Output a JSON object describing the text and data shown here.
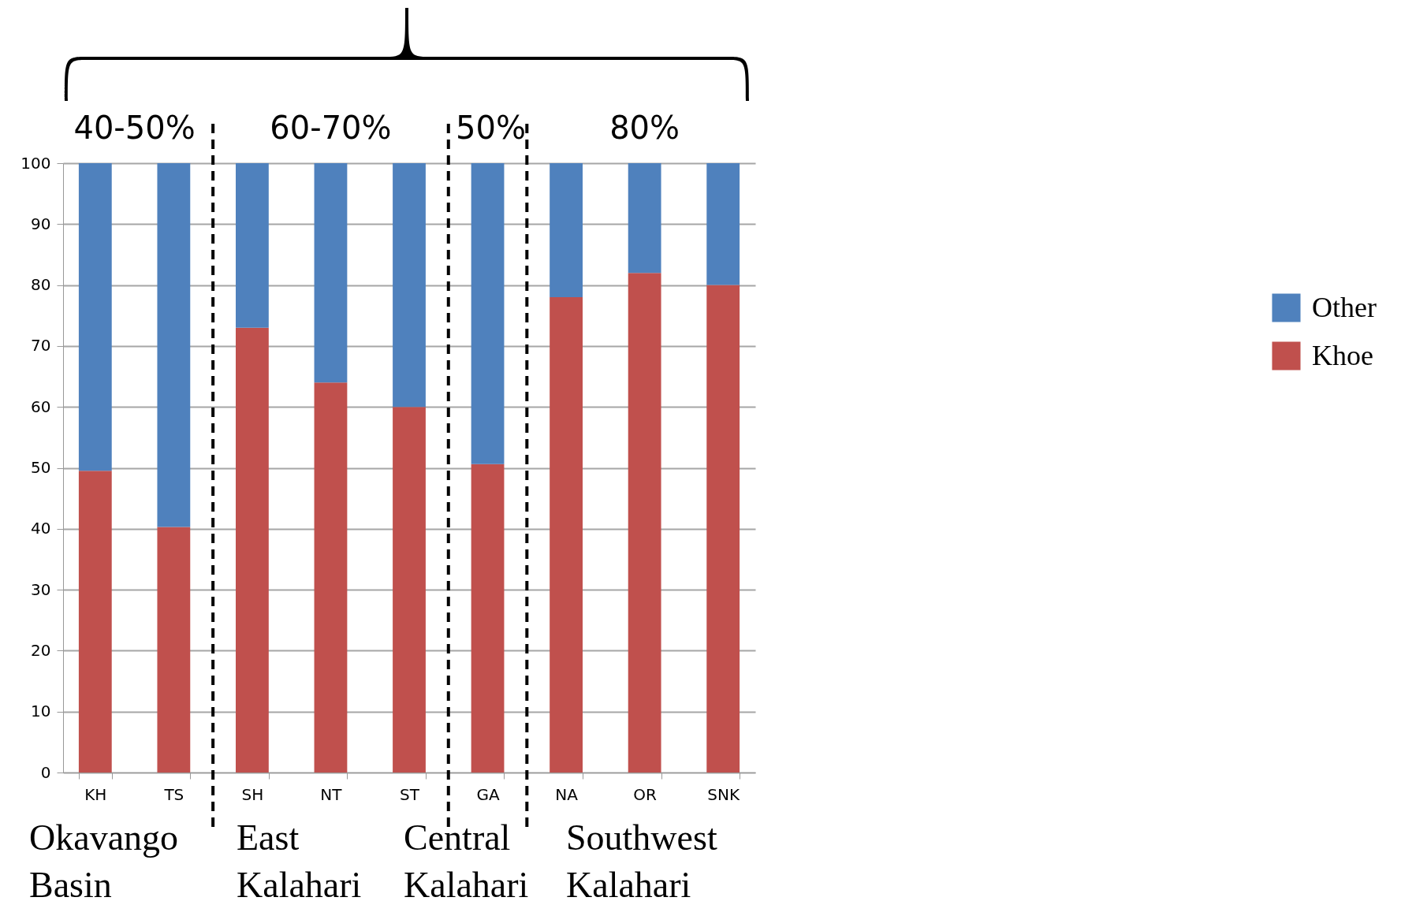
{
  "chart_data": {
    "type": "bar",
    "stacked": true,
    "categories": [
      "KH",
      "TS",
      "SH",
      "NT",
      "ST",
      "GA",
      "NA",
      "OR",
      "SNK"
    ],
    "series": [
      {
        "name": "Khoe",
        "color": "#c0504d",
        "values": [
          49.5,
          40.3,
          73,
          64,
          60,
          50.6,
          78,
          82,
          80
        ]
      },
      {
        "name": "Other",
        "color": "#4f81bd",
        "values": [
          50.5,
          59.7,
          27,
          36,
          40,
          49.4,
          22,
          18,
          20
        ]
      }
    ],
    "ylim": [
      0,
      100
    ],
    "yticks": [
      0,
      10,
      20,
      30,
      40,
      50,
      60,
      70,
      80,
      90,
      100
    ],
    "grid": "y",
    "legend": "right",
    "annotations": [
      "40-50%",
      "60-70%",
      "50%",
      "80%",
      "Okavango Basin",
      "East Kalahari",
      "Central Kalahari",
      "Southwest Kalahari"
    ]
  }
}
